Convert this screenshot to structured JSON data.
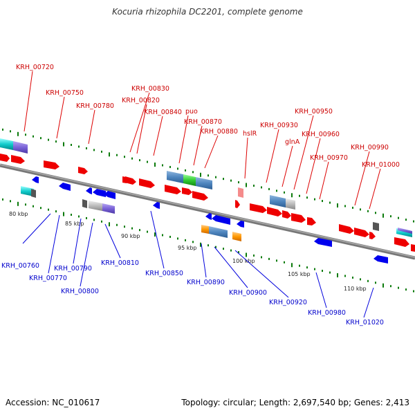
{
  "title": "Kocuria rhizophila DC2201, complete genome",
  "footer": {
    "accession": "Accession: NC_010617",
    "summary": "Topology: circular; Length: 2,697,540 bp; Genes: 2,413"
  },
  "colors": {
    "forward": "#ee0000",
    "reverse": "#0000ee",
    "backbone": "#888888",
    "tick": "#0a7a0a",
    "fwd_label": "#cc0000",
    "rev_label": "#0000cc"
  },
  "kbp_labels": [
    "80 kbp",
    "85 kbp",
    "90 kbp",
    "95 kbp",
    "100 kbp",
    "105 kbp",
    "110 kbp"
  ],
  "top_labels": [
    "KRH_00720",
    "KRH_00750",
    "KRH_00780",
    "KRH_00830",
    "KRH_00820",
    "KRH_00840",
    "puo",
    "KRH_00870",
    "KRH_00880",
    "hslR",
    "KRH_00930",
    "glnA",
    "KRH_00950",
    "KRH_00960",
    "KRH_00970",
    "KRH_00990",
    "KRH_01000"
  ],
  "bottom_labels": [
    "KRH_00760",
    "KRH_00770",
    "KRH_00790",
    "KRH_00800",
    "KRH_00810",
    "KRH_00850",
    "KRH_00890",
    "KRH_00900",
    "KRH_00920",
    "KRH_00980",
    "KRH_01020"
  ]
}
